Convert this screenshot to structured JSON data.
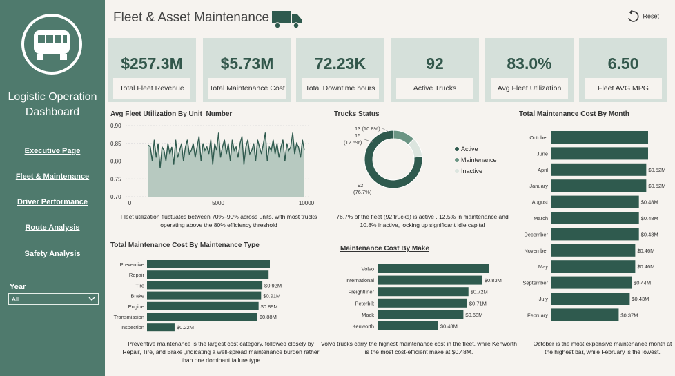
{
  "app": {
    "title": "Fleet & Asset Maintenance",
    "reset_label": "Reset"
  },
  "sidebar": {
    "title_line1": "Logistic Operation",
    "title_line2": "Dashboard",
    "nav": [
      {
        "label": "Executive Page"
      },
      {
        "label": "Fleet & Maintenance"
      },
      {
        "label": "Driver Performance"
      },
      {
        "label": "Route Analysis"
      },
      {
        "label": "Safety Analysis"
      }
    ],
    "year_filter": {
      "label": "Year",
      "value": "All"
    }
  },
  "kpis": [
    {
      "value": "$257.3M",
      "label": "Total Fleet Revenue"
    },
    {
      "value": "$5.73M",
      "label": "Total Maintenance Cost"
    },
    {
      "value": "72.23K",
      "label": "Total Downtime hours"
    },
    {
      "value": "92",
      "label": "Active Trucks"
    },
    {
      "value": "83.0%",
      "label": "Avg Fleet Utilization"
    },
    {
      "value": "6.50",
      "label": "Fleet AVG MPG"
    }
  ],
  "colors": {
    "accent": "#2f5a4e",
    "sidebar": "#4f7a6d",
    "kpi_bg": "#d5e0da",
    "area_fill": "#b7c9c0",
    "inactive": "#dce5df",
    "maintenance": "#6b9584"
  },
  "chart_data": [
    {
      "type": "area",
      "title": "Avg Fleet Utilization By Unit_Number",
      "ylim": [
        0.7,
        0.9
      ],
      "yticks": [
        "0.90",
        "0.85",
        "0.80",
        "0.75",
        "0.70"
      ],
      "xticks": [
        "0",
        "5000",
        "10000"
      ],
      "x_range": [
        0,
        10000
      ],
      "values": [
        0.845,
        0.84,
        0.8,
        0.86,
        0.81,
        0.85,
        0.78,
        0.84,
        0.83,
        0.8,
        0.85,
        0.82,
        0.84,
        0.79,
        0.86,
        0.81,
        0.83,
        0.85,
        0.8,
        0.84,
        0.86,
        0.82,
        0.83,
        0.85,
        0.81,
        0.84,
        0.87,
        0.8,
        0.85,
        0.83,
        0.84,
        0.82,
        0.86,
        0.79,
        0.85,
        0.83,
        0.88,
        0.81,
        0.84,
        0.86,
        0.82,
        0.85,
        0.8,
        0.86,
        0.83,
        0.84,
        0.81,
        0.85,
        0.87,
        0.79,
        0.84,
        0.86,
        0.82,
        0.83,
        0.85,
        0.8,
        0.86,
        0.84,
        0.82,
        0.85,
        0.88,
        0.8,
        0.84,
        0.83,
        0.86,
        0.82,
        0.85,
        0.81,
        0.84,
        0.86,
        0.8,
        0.85,
        0.83,
        0.84,
        0.88,
        0.82,
        0.85,
        0.84,
        0.81,
        0.86,
        0.83
      ],
      "caption": "Fleet utilization fluctuates between 70%–90% across units, with most trucks operating above the 80% efficiency threshold"
    },
    {
      "type": "pie",
      "title": "Trucks Status",
      "slices": [
        {
          "name": "Active",
          "value": 92,
          "label": "92\n(76.7%)"
        },
        {
          "name": "Maintenance",
          "value": 15,
          "label": "15\n(12.5%)"
        },
        {
          "name": "Inactive",
          "value": 13,
          "label": "13 (10.8%)"
        }
      ],
      "legend": [
        "Active",
        "Maintenance",
        "Inactive"
      ],
      "caption": "76.7% of the fleet (92 trucks) is active , 12.5% in maintenance and 10.8% inactive, locking up significant idle capital"
    },
    {
      "type": "bar",
      "title": "Total Maintenance Cost By Month",
      "categories": [
        "October",
        "June",
        "April",
        "January",
        "August",
        "March",
        "December",
        "November",
        "May",
        "September",
        "July",
        "February"
      ],
      "values": [
        0.53,
        0.53,
        0.52,
        0.52,
        0.48,
        0.48,
        0.48,
        0.46,
        0.46,
        0.44,
        0.43,
        0.37
      ],
      "labels": [
        "",
        "",
        "$0.52M",
        "$0.52M",
        "$0.48M",
        "$0.48M",
        "$0.48M",
        "$0.46M",
        "$0.46M",
        "$0.44M",
        "$0.43M",
        "$0.37M"
      ],
      "caption": "October is the most expensive maintenance month at the highest bar, while February is the lowest."
    },
    {
      "type": "bar",
      "title": "Total Maintenance Cost By Maintenance Type",
      "categories": [
        "Preventive",
        "Repair",
        "Tire",
        "Brake",
        "Engine",
        "Transmission",
        "Inspection"
      ],
      "values": [
        0.98,
        0.97,
        0.92,
        0.91,
        0.89,
        0.88,
        0.22
      ],
      "labels": [
        "",
        "",
        "$0.92M",
        "$0.91M",
        "$0.89M",
        "$0.88M",
        "$0.22M"
      ],
      "caption": "Preventive maintenance is the largest cost category, followed closely by Repair, Tire, and Brake ,indicating a well-spread maintenance burden rather than one dominant failure type"
    },
    {
      "type": "bar",
      "title": "Maintenance Cost By Make",
      "categories": [
        "Volvo",
        "International",
        "Freightliner",
        "Peterbilt",
        "Mack",
        "Kenworth"
      ],
      "values": [
        0.88,
        0.83,
        0.72,
        0.71,
        0.68,
        0.48
      ],
      "labels": [
        "",
        "$0.83M",
        "$0.72M",
        "$0.71M",
        "$0.68M",
        "$0.48M"
      ],
      "caption": "Volvo trucks carry the highest maintenance cost in the fleet, while Kenworth is the most cost-efficient make at $0.48M."
    }
  ]
}
